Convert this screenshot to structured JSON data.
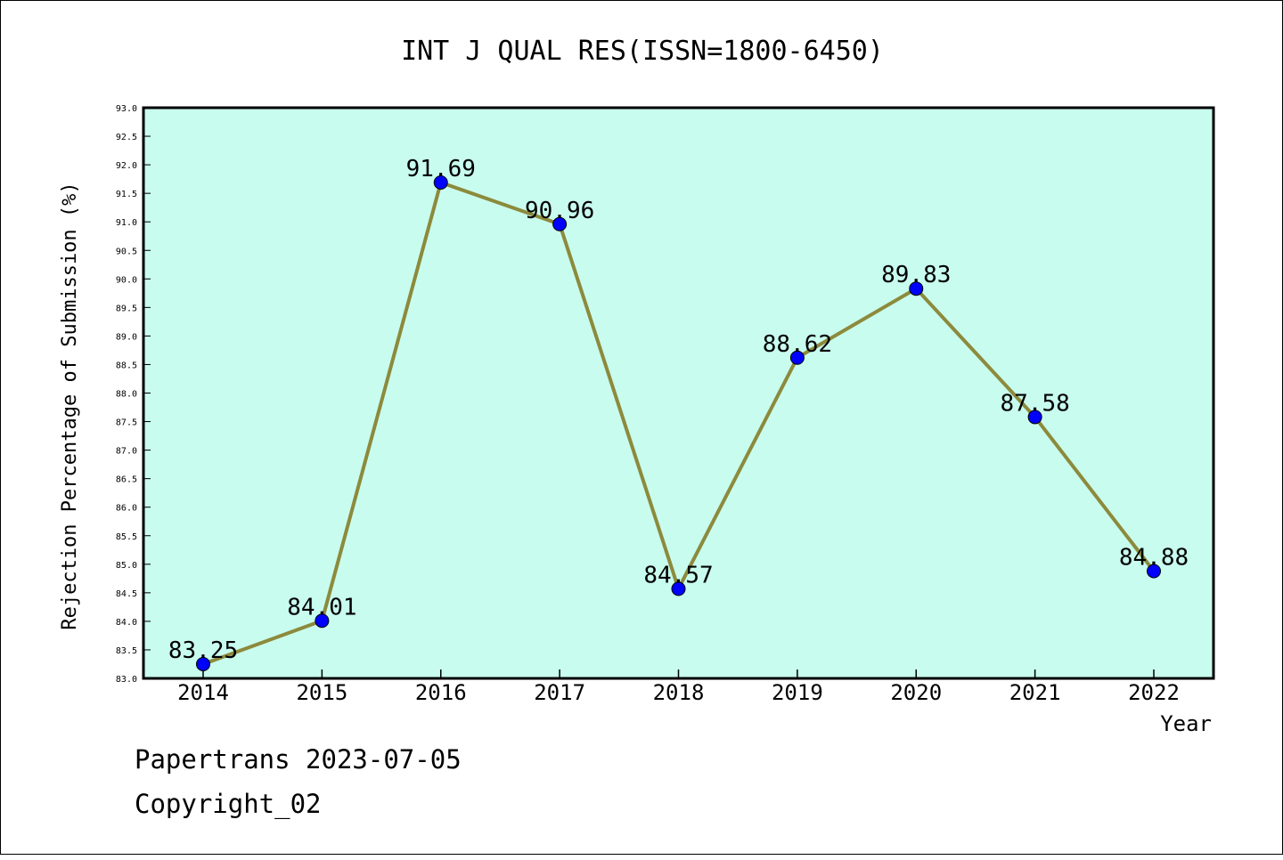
{
  "chart_data": {
    "type": "line",
    "title": "INT J QUAL RES(ISSN=1800-6450)",
    "xlabel": "Year",
    "ylabel": "Rejection Percentage of Submission (%)",
    "categories": [
      "2014",
      "2015",
      "2016",
      "2017",
      "2018",
      "2019",
      "2020",
      "2021",
      "2022"
    ],
    "series": [
      {
        "values": [
          83.25,
          84.01,
          91.69,
          90.96,
          84.57,
          88.62,
          89.83,
          87.58,
          84.88
        ],
        "labels": [
          "83.25",
          "84.01",
          "91.69",
          "90.96",
          "84.57",
          "88.62",
          "89.83",
          "87.58",
          "84.88"
        ]
      }
    ],
    "ylim": [
      83.0,
      93.0
    ],
    "yticks": [
      "83.0",
      "83.5",
      "84.0",
      "84.5",
      "85.0",
      "85.5",
      "86.0",
      "86.5",
      "87.0",
      "87.5",
      "88.0",
      "88.5",
      "89.0",
      "89.5",
      "90.0",
      "90.5",
      "91.0",
      "91.5",
      "92.0",
      "92.5",
      "93.0"
    ],
    "grid": false,
    "legend": "none",
    "colors": {
      "plot_background": "#c8fcee",
      "line": "#8c8a3c",
      "marker": "#0000ff"
    }
  },
  "footer": {
    "line1": "Papertrans 2023-07-05",
    "line2": "Copyright_02"
  }
}
